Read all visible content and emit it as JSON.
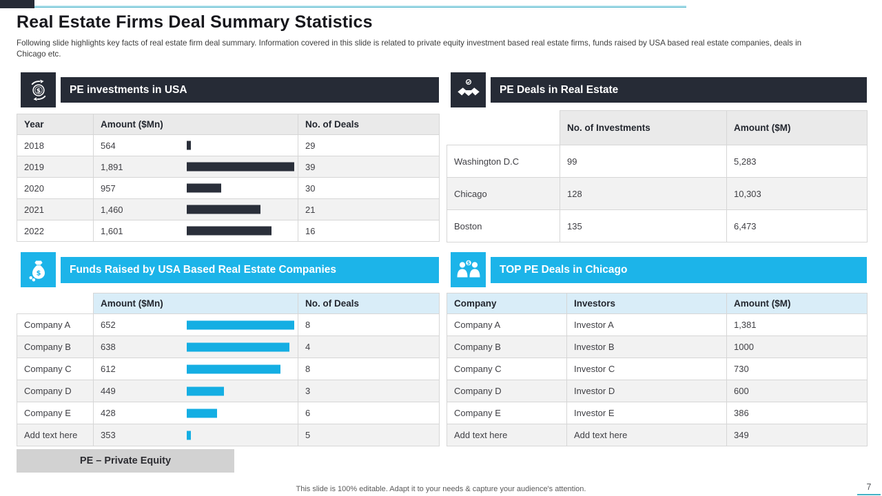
{
  "slide": {
    "title": "Real Estate Firms Deal Summary Statistics",
    "subtitle": "Following slide highlights key facts of real estate firm deal summary. Information covered in this slide is related to private equity investment based real estate firms, funds raised by USA based real estate companies, deals in Chicago etc.",
    "abbreviation": "PE – Private Equity",
    "footer_note": "This slide is 100% editable. Adapt it to your needs & capture your audience's attention.",
    "page_number": "7"
  },
  "colors": {
    "dark": "#262b36",
    "cyan": "#1cb4e9",
    "bar_dark": "#2a2f3a",
    "bar_cyan": "#14aee3",
    "table_header_gray": "#eaeaea",
    "table_header_blue": "#d9edf8",
    "row_alt": "#f2f2f2",
    "accent_teal_line": "#45b1c8"
  },
  "sections": [
    {
      "id": "pe-investments-usa",
      "icon": "money-rotation-icon",
      "title": "PE investments in USA",
      "table": {
        "columns": [
          "Year",
          "Amount ($Mn)",
          "No. of Deals"
        ],
        "rows": [
          {
            "c0": "2018",
            "c1": "564",
            "value": 564,
            "c2": "29"
          },
          {
            "c0": "2019",
            "c1": "1,891",
            "value": 1891,
            "c2": "39"
          },
          {
            "c0": "2020",
            "c1": "957",
            "value": 957,
            "c2": "30"
          },
          {
            "c0": "2021",
            "c1": "1,460",
            "value": 1460,
            "c2": "21"
          },
          {
            "c0": "2022",
            "c1": "1,601",
            "value": 1601,
            "c2": "16"
          }
        ]
      }
    },
    {
      "id": "pe-deals-real-estate",
      "icon": "handshake-icon",
      "title": "PE Deals in Real Estate",
      "table": {
        "columns": [
          "",
          "No. of Investments",
          "Amount ($M)"
        ],
        "rows": [
          {
            "c0": "Washington D.C",
            "c1": "99",
            "c2": "5,283"
          },
          {
            "c0": "Chicago",
            "c1": "128",
            "c2": "10,303"
          },
          {
            "c0": "Boston",
            "c1": "135",
            "c2": "6,473"
          }
        ]
      }
    },
    {
      "id": "funds-raised-usa",
      "icon": "money-bag-icon",
      "title": "Funds Raised by USA Based Real Estate Companies",
      "table": {
        "columns": [
          "",
          "Amount ($Mn)",
          "No. of Deals"
        ],
        "rows": [
          {
            "c0": "Company A",
            "c1": "652",
            "value": 652,
            "c2": "8"
          },
          {
            "c0": "Company B",
            "c1": "638",
            "value": 638,
            "c2": "4"
          },
          {
            "c0": "Company C",
            "c1": "612",
            "value": 612,
            "c2": "8"
          },
          {
            "c0": "Company D",
            "c1": "449",
            "value": 449,
            "c2": "3"
          },
          {
            "c0": "Company E",
            "c1": "428",
            "value": 428,
            "c2": "6"
          },
          {
            "c0": "Add text here",
            "c1": "353",
            "value": 353,
            "c2": "5"
          }
        ]
      }
    },
    {
      "id": "top-pe-deals-chicago",
      "icon": "partnership-money-icon",
      "title": "TOP PE Deals in Chicago",
      "table": {
        "columns": [
          "Company",
          "Investors",
          "Amount ($M)"
        ],
        "rows": [
          {
            "c0": "Company A",
            "c1": "Investor A",
            "c2": "1,381"
          },
          {
            "c0": "Company B",
            "c1": "Investor B",
            "c2": "1000"
          },
          {
            "c0": "Company C",
            "c1": "Investor C",
            "c2": "730"
          },
          {
            "c0": "Company D",
            "c1": "Investor D",
            "c2": "600"
          },
          {
            "c0": "Company E",
            "c1": "Investor E",
            "c2": "386"
          },
          {
            "c0": "Add text here",
            "c1": "Add text here",
            "c2": "349"
          }
        ]
      }
    }
  ]
}
